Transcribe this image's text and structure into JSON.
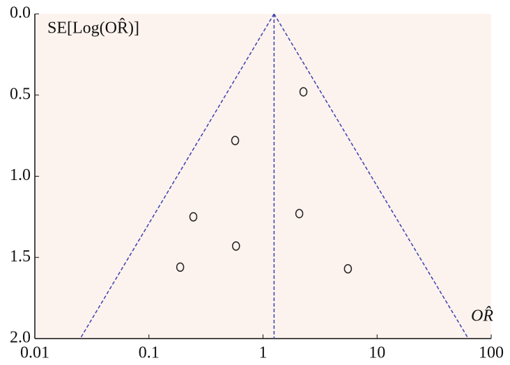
{
  "chart_data": {
    "type": "funnel",
    "y_label": "SE[Log(OR̂)]",
    "x_label": "OR̂",
    "x_log": true,
    "y_inverted": true,
    "xlim": [
      0.01,
      100
    ],
    "xticks": [
      0.01,
      0.1,
      1,
      10,
      100
    ],
    "ylim": [
      0,
      2
    ],
    "yticks": [
      {
        "value": 0,
        "label": "0.0"
      },
      0.5,
      {
        "value": 1,
        "label": "1.0"
      },
      1.5,
      {
        "value": 2,
        "label": "2.0"
      }
    ],
    "background": "#fdf3ee",
    "line_color": "#3a3fb0",
    "point_color": "#222222",
    "points": {
      "x": [
        2.26,
        0.57,
        0.245,
        2.08,
        0.58,
        0.188,
        5.55
      ],
      "y": [
        0.48,
        0.78,
        1.25,
        1.23,
        1.43,
        1.56,
        1.57
      ]
    },
    "pooled_line": {
      "x": [
        1.25,
        1.25
      ],
      "y": [
        0,
        2
      ]
    },
    "funnel_lines": [
      {
        "x": [
          1.25,
          0.025
        ],
        "y": [
          0,
          2
        ]
      },
      {
        "x": [
          1.25,
          63
        ],
        "y": [
          0,
          2
        ]
      }
    ]
  }
}
